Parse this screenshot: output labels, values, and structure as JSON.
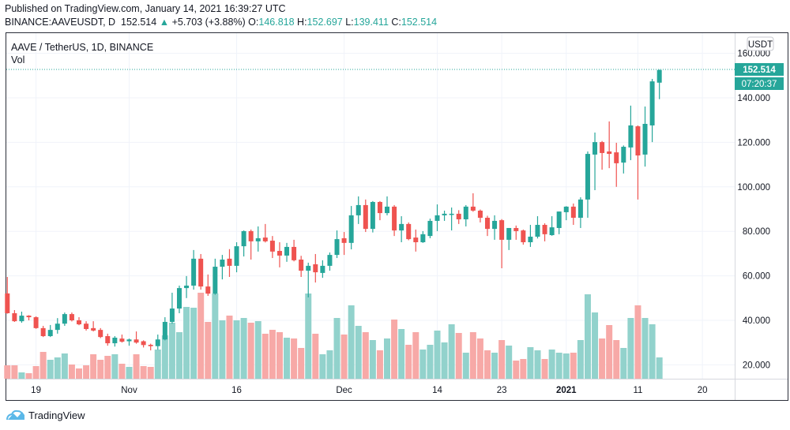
{
  "header": {
    "published": "Published on TradingView.com, January 14, 2021 16:39:27 UTC",
    "symbol": "BINANCE:AAVEUSDT, D",
    "last": "152.514",
    "change_arrow": "▲",
    "change": "+5.703 (+3.88%)",
    "o_label": "O:",
    "o": "146.818",
    "h_label": "H:",
    "h": "152.697",
    "l_label": "L:",
    "l": "139.411",
    "c_label": "C:",
    "c": "152.514"
  },
  "legend": {
    "title": "AAVE / TetherUS, 1D, BINANCE",
    "vol": "Vol"
  },
  "price_axis": {
    "currency": "USDT",
    "last_price": "152.514",
    "countdown": "07:20:37"
  },
  "footer": {
    "brand": "TradingView"
  },
  "colors": {
    "up": "#26a69a",
    "down": "#ef5350",
    "vol_up": "#92d2cc",
    "vol_down": "#f7a9a7",
    "logo": "#5bb8e8"
  },
  "chart_data": {
    "type": "candlestick",
    "title": "AAVE / TetherUS, 1D, BINANCE",
    "ylim": [
      12,
      166
    ],
    "y_ticks": [
      "20.000",
      "40.000",
      "60.000",
      "80.000",
      "100.000",
      "120.000",
      "140.000",
      "160.000"
    ],
    "x_ticks": [
      {
        "label": "19",
        "date": "2020-10-19"
      },
      {
        "label": "Nov",
        "date": "2020-11-01"
      },
      {
        "label": "16",
        "date": "2020-11-16"
      },
      {
        "label": "Dec",
        "date": "2020-12-01"
      },
      {
        "label": "14",
        "date": "2020-12-14"
      },
      {
        "label": "23",
        "date": "2020-12-23"
      },
      {
        "label": "2021",
        "date": "2021-01-01"
      },
      {
        "label": "11",
        "date": "2021-01-11"
      },
      {
        "label": "20",
        "date": "2021-01-20"
      }
    ],
    "grid": true,
    "columns": [
      "date",
      "open",
      "high",
      "low",
      "close",
      "volume_relative"
    ],
    "candles": [
      [
        "2020-10-15",
        52.1,
        59.5,
        43,
        43.2,
        17
      ],
      [
        "2020-10-16",
        43.2,
        44.6,
        39.3,
        39.6,
        17
      ],
      [
        "2020-10-17",
        39.6,
        43.9,
        38.9,
        42.1,
        8
      ],
      [
        "2020-10-18",
        42.1,
        42.3,
        40,
        41.4,
        7
      ],
      [
        "2020-10-19",
        41.4,
        41.8,
        36.2,
        36.5,
        16
      ],
      [
        "2020-10-20",
        36.5,
        37.5,
        32.5,
        32.9,
        34
      ],
      [
        "2020-10-21",
        32.9,
        37.9,
        32.5,
        35.7,
        24
      ],
      [
        "2020-10-22",
        35.7,
        41,
        34,
        38.5,
        27
      ],
      [
        "2020-10-23",
        38.5,
        43.5,
        37.5,
        42.8,
        32
      ],
      [
        "2020-10-24",
        42.8,
        43.5,
        39.5,
        40,
        18
      ],
      [
        "2020-10-25",
        40,
        41.4,
        37.8,
        38.2,
        13
      ],
      [
        "2020-10-26",
        38.5,
        39.6,
        35.4,
        36.1,
        17
      ],
      [
        "2020-10-27",
        36.5,
        39.6,
        35,
        35.4,
        31
      ],
      [
        "2020-10-28",
        35.7,
        36.5,
        32,
        32.5,
        24
      ],
      [
        "2020-10-29",
        32.9,
        34,
        28.6,
        29.7,
        29
      ],
      [
        "2020-10-30",
        29.7,
        32.9,
        28.2,
        32.2,
        31
      ],
      [
        "2020-10-31",
        31.8,
        33.6,
        30,
        30.4,
        19
      ],
      [
        "2020-11-01",
        30.6,
        31.8,
        28.6,
        31.4,
        15
      ],
      [
        "2020-11-02",
        31.4,
        35,
        29.5,
        30,
        31
      ],
      [
        "2020-11-03",
        30.6,
        31,
        27.8,
        28.9,
        16
      ],
      [
        "2020-11-04",
        29,
        29.5,
        26.5,
        28.4,
        15
      ],
      [
        "2020-11-05",
        28.4,
        33.6,
        26.8,
        31.4,
        37
      ],
      [
        "2020-11-06",
        31.4,
        41.4,
        31,
        39.3,
        55
      ],
      [
        "2020-11-07",
        39.3,
        52.4,
        38.5,
        45.3,
        71
      ],
      [
        "2020-11-08",
        45.3,
        55.6,
        43.2,
        54.5,
        59
      ],
      [
        "2020-11-09",
        54.5,
        59.9,
        50,
        55.6,
        91
      ],
      [
        "2020-11-10",
        55.6,
        71.6,
        53.8,
        67.7,
        90
      ],
      [
        "2020-11-11",
        67.7,
        69.8,
        53.8,
        55.2,
        109
      ],
      [
        "2020-11-12",
        55.2,
        60.6,
        51,
        52,
        72
      ],
      [
        "2020-11-13",
        52,
        67.7,
        51.5,
        64.1,
        108
      ],
      [
        "2020-11-14",
        64.1,
        69.4,
        58.4,
        67.3,
        74
      ],
      [
        "2020-11-15",
        67.7,
        72,
        59.5,
        64.5,
        80
      ],
      [
        "2020-11-16",
        64.5,
        75.1,
        61.6,
        73.3,
        74
      ],
      [
        "2020-11-17",
        73.3,
        80.4,
        68.7,
        80.1,
        77
      ],
      [
        "2020-11-18",
        80.1,
        80.8,
        67.3,
        75.5,
        71
      ],
      [
        "2020-11-19",
        75.5,
        82.2,
        70.9,
        76.9,
        73
      ],
      [
        "2020-11-20",
        77.2,
        83.3,
        75,
        75.5,
        57
      ],
      [
        "2020-11-21",
        75.8,
        77.9,
        68,
        70.9,
        62
      ],
      [
        "2020-11-22",
        71.2,
        75.1,
        63.8,
        69.1,
        59
      ],
      [
        "2020-11-23",
        69.1,
        74.8,
        66.3,
        73,
        52
      ],
      [
        "2020-11-24",
        73,
        76.2,
        66.5,
        67,
        51
      ],
      [
        "2020-11-25",
        67.3,
        69,
        59.5,
        62.3,
        39
      ],
      [
        "2020-11-26",
        62.3,
        65.9,
        50.3,
        64.5,
        108
      ],
      [
        "2020-11-27",
        65.2,
        69.8,
        57,
        61.6,
        57
      ],
      [
        "2020-11-28",
        61.3,
        67,
        59.1,
        64.5,
        31
      ],
      [
        "2020-11-29",
        64.5,
        70.5,
        62.3,
        69.4,
        36
      ],
      [
        "2020-11-30",
        69.4,
        80.4,
        68,
        76.5,
        77
      ],
      [
        "2020-12-01",
        76.9,
        79.7,
        69.4,
        74.8,
        56
      ],
      [
        "2020-12-02",
        74.8,
        91.4,
        71.9,
        87.2,
        93
      ],
      [
        "2020-12-03",
        87.2,
        95.7,
        83.3,
        91.8,
        67
      ],
      [
        "2020-12-04",
        91.8,
        94.3,
        79.7,
        81.1,
        59
      ],
      [
        "2020-12-05",
        81.1,
        93.6,
        79.5,
        93.2,
        49
      ],
      [
        "2020-12-06",
        93.2,
        93.6,
        85,
        88.2,
        36
      ],
      [
        "2020-12-07",
        88.2,
        95.7,
        87.2,
        91.1,
        51
      ],
      [
        "2020-12-08",
        91.1,
        91.8,
        77.9,
        80.4,
        75
      ],
      [
        "2020-12-09",
        80.4,
        86.8,
        75.1,
        83.3,
        63
      ],
      [
        "2020-12-10",
        83.3,
        84,
        76,
        76.5,
        43
      ],
      [
        "2020-12-11",
        77.2,
        80.8,
        70.9,
        75.1,
        59
      ],
      [
        "2020-12-12",
        75.1,
        80.1,
        74.8,
        78.7,
        37
      ],
      [
        "2020-12-13",
        77.9,
        85.7,
        76.9,
        84.7,
        43
      ],
      [
        "2020-12-14",
        84.7,
        92.1,
        80.1,
        87.2,
        61
      ],
      [
        "2020-12-15",
        87.2,
        89.3,
        84.7,
        87.9,
        46
      ],
      [
        "2020-12-16",
        87.5,
        90.7,
        80.4,
        87.9,
        69
      ],
      [
        "2020-12-17",
        87.9,
        89.5,
        83.3,
        85.4,
        58
      ],
      [
        "2020-12-18",
        85.4,
        91.8,
        82.2,
        91.1,
        33
      ],
      [
        "2020-12-19",
        91.1,
        97.1,
        88.8,
        89.3,
        59
      ],
      [
        "2020-12-20",
        89.3,
        89.8,
        84,
        86.1,
        51
      ],
      [
        "2020-12-21",
        86.1,
        87,
        77.9,
        81.1,
        36
      ],
      [
        "2020-12-22",
        81.1,
        87.2,
        76.2,
        84.7,
        33
      ],
      [
        "2020-12-23",
        85,
        85.5,
        63.4,
        76.2,
        49
      ],
      [
        "2020-12-24",
        76.2,
        81.5,
        71.6,
        81.5,
        42
      ],
      [
        "2020-12-25",
        81.5,
        82.6,
        76.2,
        80.1,
        23
      ],
      [
        "2020-12-26",
        80.4,
        80.8,
        74,
        75.1,
        25
      ],
      [
        "2020-12-27",
        75.1,
        82.9,
        73,
        77.6,
        40
      ],
      [
        "2020-12-28",
        77.6,
        86.8,
        76.8,
        82.9,
        36
      ],
      [
        "2020-12-29",
        82.9,
        83.6,
        75.5,
        78.7,
        25
      ],
      [
        "2020-12-30",
        78.3,
        86.8,
        78,
        81.8,
        37
      ],
      [
        "2020-12-31",
        81.5,
        88.9,
        78.7,
        88.9,
        33
      ],
      [
        "2021-01-01",
        88.6,
        91.3,
        85,
        91.1,
        32
      ],
      [
        "2021-01-02",
        91.1,
        92.5,
        82.9,
        86.1,
        33
      ],
      [
        "2021-01-03",
        86.1,
        95.3,
        81.5,
        94.3,
        49
      ],
      [
        "2021-01-04",
        94.3,
        115.9,
        86.1,
        114.8,
        107
      ],
      [
        "2021-01-05",
        114.5,
        124.4,
        98.5,
        120.1,
        84
      ],
      [
        "2021-01-06",
        120.1,
        120.6,
        107.7,
        115.2,
        51
      ],
      [
        "2021-01-07",
        115.9,
        129.4,
        108.4,
        114.8,
        68
      ],
      [
        "2021-01-08",
        115.5,
        119.8,
        100,
        110.6,
        49
      ],
      [
        "2021-01-09",
        110.9,
        118.6,
        106,
        118,
        39
      ],
      [
        "2021-01-10",
        117.7,
        136.5,
        112,
        127.6,
        77
      ],
      [
        "2021-01-11",
        127.2,
        127.6,
        94.3,
        114.1,
        93
      ],
      [
        "2021-01-12",
        114.5,
        136.1,
        109.1,
        128.3,
        77
      ],
      [
        "2021-01-13",
        127.6,
        148.5,
        120.1,
        147.4,
        69
      ],
      [
        "2021-01-14",
        146.818,
        152.697,
        139.411,
        152.514,
        27
      ]
    ]
  }
}
